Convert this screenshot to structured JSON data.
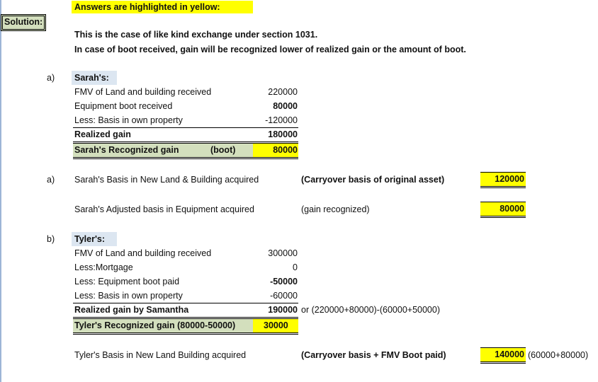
{
  "header": {
    "answers_note": "Answers are highlighted in yellow:",
    "solution_label": "Solution:"
  },
  "intro": {
    "line1": "This is the case of like kind exchange under section 1031.",
    "line2": "In case of boot received, gain will be recognized lower of realized gain or the amount of boot."
  },
  "sarah": {
    "marker": "a)",
    "title": "Sarah's:",
    "rows": [
      {
        "label": "FMV of Land and building received",
        "value": "220000"
      },
      {
        "label": "Equipment boot received",
        "value": "80000"
      },
      {
        "label": "Less: Basis in own property",
        "value": "-120000"
      },
      {
        "label": "Realized gain",
        "value": "180000"
      }
    ],
    "recognized": {
      "label": "Sarah's Recognized gain",
      "note": "(boot)",
      "value": "80000"
    }
  },
  "sarah_basis": {
    "marker": "a)",
    "land": {
      "label": "Sarah's Basis in New Land & Building acquired",
      "note": "(Carryover basis of original asset)",
      "value": "120000"
    },
    "equipment": {
      "label": "Sarah's Adjusted basis in Equipment acquired",
      "note": "(gain recognized)",
      "value": "80000"
    }
  },
  "tyler": {
    "marker": "b)",
    "title": "Tyler's:",
    "rows": [
      {
        "label": "FMV of Land and building received",
        "value": "300000"
      },
      {
        "label": "Less:Mortgage",
        "value": "0"
      },
      {
        "label": "Less: Equipment boot paid",
        "value": "-50000"
      },
      {
        "label": "Less: Basis in own property",
        "value": "-60000"
      },
      {
        "label": "Realized gain by Samantha",
        "value": "190000",
        "note": "or (220000+80000)-(60000+50000)"
      }
    ],
    "recognized": {
      "label": "Tyler's Recognized gain (80000-50000)",
      "value": "30000"
    },
    "basis": {
      "label": "Tyler's Basis in New Land Building acquired",
      "note": "(Carryover basis + FMV Boot paid)",
      "value": "140000",
      "calc": "(60000+80000)"
    }
  },
  "colors": {
    "highlight": "#ffff00",
    "green": "#d3dfbd",
    "blue": "#dce6f1"
  }
}
